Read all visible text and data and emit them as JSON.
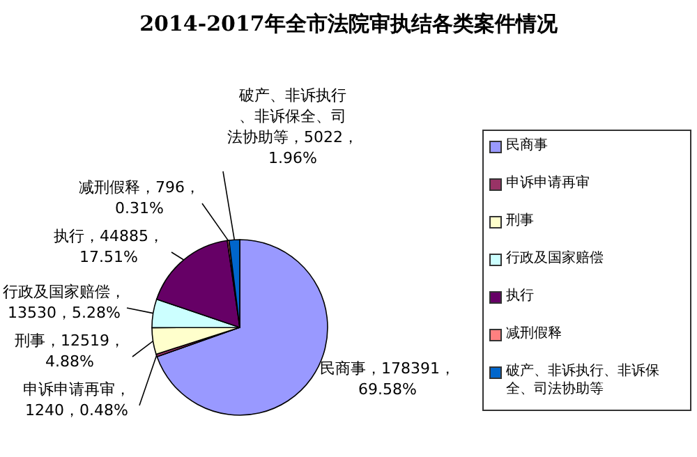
{
  "chart_data": {
    "type": "pie",
    "title": "2014-2017年全市法院审执结各类案件情况",
    "categories": [
      "民商事",
      "申诉申请再审",
      "刑事",
      "行政及国家赔偿",
      "执行",
      "减刑假释",
      "破产、非诉执行、非诉保全、司法协助等"
    ],
    "values": [
      178391,
      1240,
      12519,
      13530,
      44885,
      796,
      5022
    ],
    "colors": [
      "#9999ff",
      "#993366",
      "#ffffcc",
      "#ccffff",
      "#660066",
      "#ff8080",
      "#0066cc"
    ],
    "value_labels": [
      "民商事，178391，69.58%",
      "申诉申请再审，1240，0.48%",
      "刑事，12519，4.88%",
      "行政及国家赔偿，13530，5.28%",
      "执行，44885，17.51%",
      "减刑假释，796，0.31%",
      "破产、非诉执行、非诉保全、司法协助等，5022，1.96%"
    ],
    "legend": "right"
  }
}
